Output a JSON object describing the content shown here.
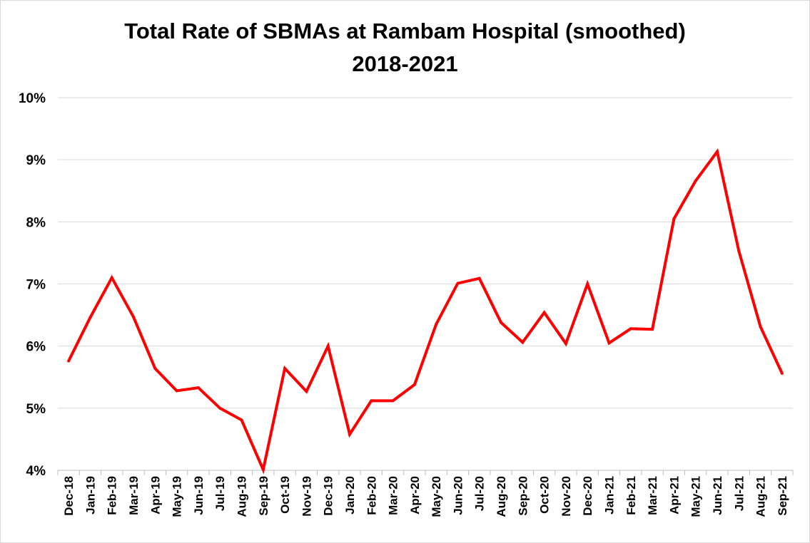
{
  "chart_data": {
    "type": "line",
    "title": "Total Rate of SBMAs at Rambam Hospital (smoothed)",
    "subtitle": "2018-2021",
    "xlabel": "",
    "ylabel": "",
    "ylim": [
      0.04,
      0.1
    ],
    "yticks": [
      {
        "value": 0.04,
        "label": "4%"
      },
      {
        "value": 0.05,
        "label": "5%"
      },
      {
        "value": 0.06,
        "label": "6%"
      },
      {
        "value": 0.07,
        "label": "7%"
      },
      {
        "value": 0.08,
        "label": "8%"
      },
      {
        "value": 0.09,
        "label": "9%"
      },
      {
        "value": 0.1,
        "label": "10%"
      }
    ],
    "grid": "horizontal",
    "categories": [
      "Dec-18",
      "Jan-19",
      "Feb-19",
      "Mar-19",
      "Apr-19",
      "May-19",
      "Jun-19",
      "Jul-19",
      "Aug-19",
      "Sep-19",
      "Oct-19",
      "Nov-19",
      "Dec-19",
      "Jan-20",
      "Feb-20",
      "Mar-20",
      "Apr-20",
      "May-20",
      "Jun-20",
      "Jul-20",
      "Aug-20",
      "Sep-20",
      "Oct-20",
      "Nov-20",
      "Dec-20",
      "Jan-21",
      "Feb-21",
      "Mar-21",
      "Apr-21",
      "May-21",
      "Jun-21",
      "Jul-21",
      "Aug-21",
      "Sep-21"
    ],
    "series": [
      {
        "color": "#ff0000",
        "values": [
          0.0576,
          0.0646,
          0.071,
          0.0647,
          0.0564,
          0.0528,
          0.0533,
          0.05,
          0.0481,
          0.0401,
          0.0564,
          0.0527,
          0.06,
          0.0458,
          0.0512,
          0.0512,
          0.0538,
          0.0635,
          0.0701,
          0.0709,
          0.0638,
          0.0606,
          0.0654,
          0.0604,
          0.07,
          0.0605,
          0.0628,
          0.0627,
          0.0805,
          0.0866,
          0.0913,
          0.0753,
          0.0631,
          0.0556
        ]
      }
    ]
  }
}
